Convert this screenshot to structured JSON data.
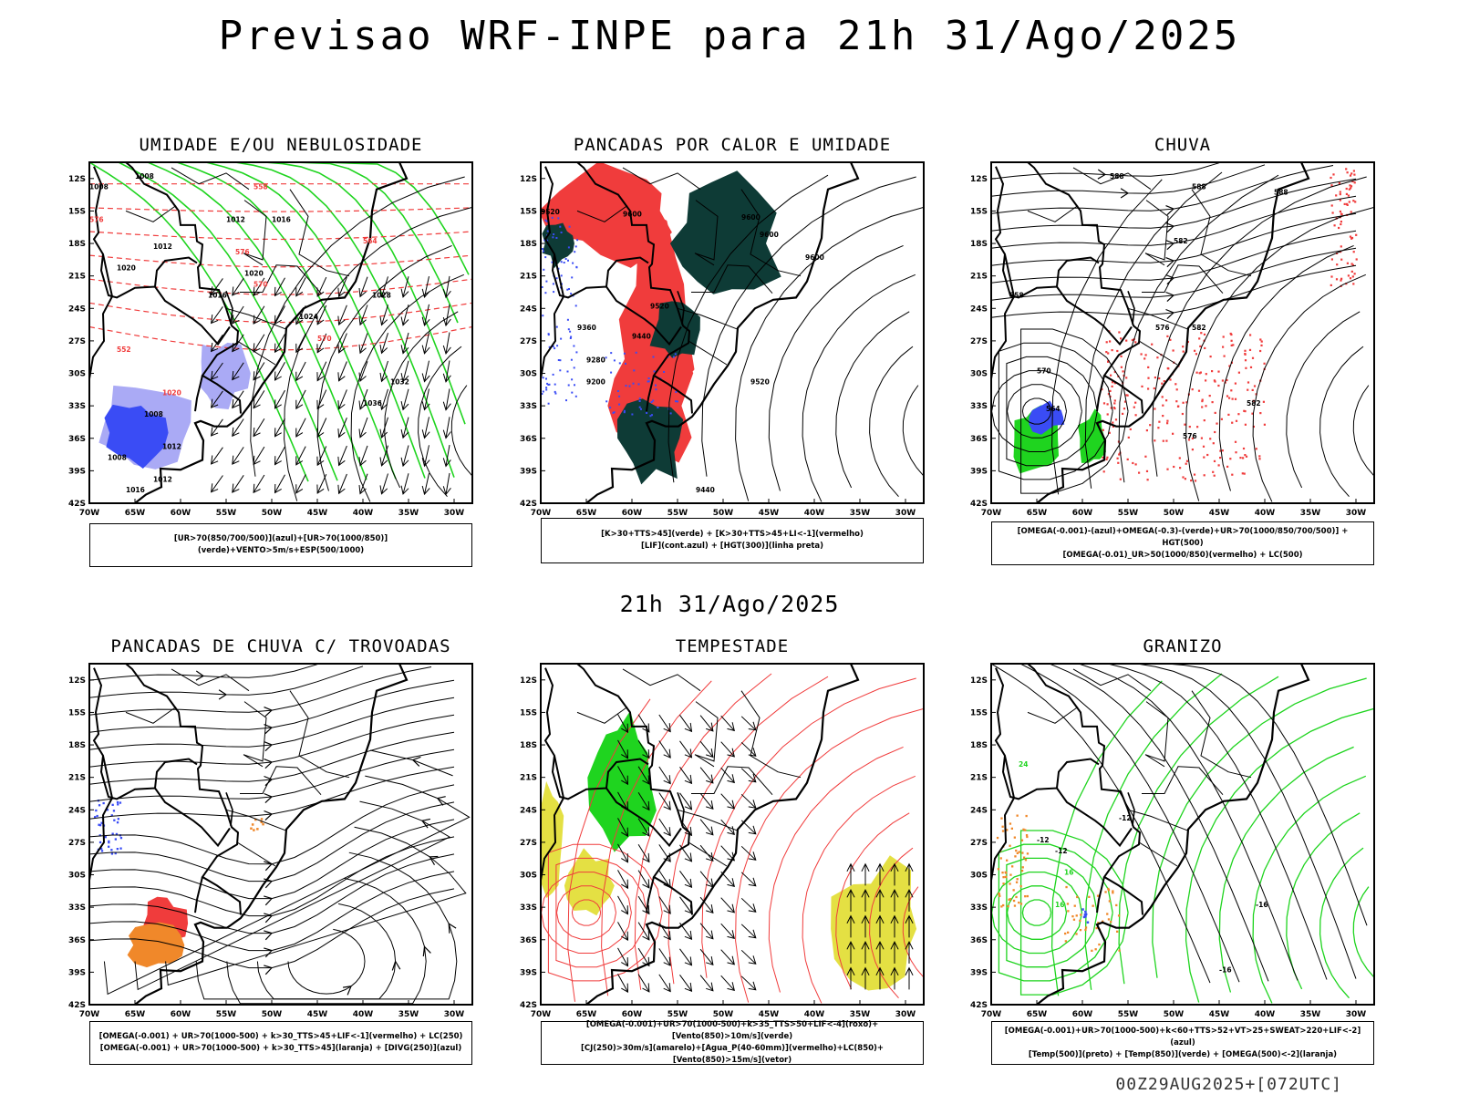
{
  "main_title": "Previsao WRF-INPE  para 21h 31/Ago/2025",
  "mid_title": "21h 31/Ago/2025",
  "footer": "00Z29AUG2025+[072UTC]",
  "lat_labels": [
    "12S",
    "15S",
    "18S",
    "21S",
    "24S",
    "27S",
    "30S",
    "33S",
    "36S",
    "39S",
    "42S"
  ],
  "lon_labels": [
    "70W",
    "65W",
    "60W",
    "55W",
    "50W",
    "45W",
    "40W",
    "35W",
    "30W"
  ],
  "colors": {
    "blue": "#3a4cf5",
    "green": "#1fd41f",
    "red": "#f03c3c",
    "darkgreen": "#0e3b36",
    "orange": "#f0882a",
    "yellow": "#e4e043",
    "lavender": "#aaaaf5"
  },
  "panels": [
    {
      "title": "UMIDADE E/OU NEBULOSIDADE",
      "legend": [
        "[UR>70(850/700/500)](azul)+[UR>70(1000/850)](verde)+VENTO>5m/s+ESP(500/1000)"
      ],
      "labels": [
        "1008",
        "1008",
        "1012",
        "1016",
        "1012",
        "1020",
        "1020",
        "1016",
        "1008",
        "1012",
        "1024",
        "1028",
        "1032",
        "1036",
        "1008",
        "1012",
        "1016",
        "1020",
        "576",
        "570",
        "564",
        "558",
        "552",
        "576",
        "570"
      ]
    },
    {
      "title": "PANCADAS POR CALOR E UMIDADE",
      "legend": [
        "[K>30+TTS>45](verde) + [K>30+TTS>45+LI<-1](vermelho)",
        "[LIF](cont.azul) + [HGT(300)](linha preta)"
      ],
      "labels": [
        "9520",
        "9600",
        "9600",
        "9600",
        "9600",
        "9520",
        "9440",
        "9360",
        "9280",
        "9200",
        "9520",
        "9440"
      ]
    },
    {
      "title": "CHUVA",
      "legend": [
        "[OMEGA(-0.001)-(azul)+OMEGA(-0.3)-(verde)+UR>70(1000/850/700/500)] + HGT(500)",
        "[OMEGA(-0.01)_UR>50(1000/850)(vermelho) + LC(500)"
      ],
      "labels": [
        "588",
        "588",
        "588",
        "582",
        "576",
        "570",
        "564",
        "558",
        "582",
        "576",
        "582"
      ]
    },
    {
      "title": "PANCADAS DE CHUVA C/ TROVOADAS",
      "legend": [
        "[OMEGA(-0.001) + UR>70(1000-500) + k>30_TTS>45+LIF<-1](vermelho) + LC(250)",
        "[OMEGA(-0.001) + UR>70(1000-500) + k>30_TTS>45](laranja) + [DIVG(250)](azul)"
      ],
      "labels": []
    },
    {
      "title": "TEMPESTADE",
      "legend": [
        "[OMEGA(-0.001)+UR>70(1000-500)+k>35_TTS>50+LIF<-4](roxo)+[Vento(850)>10m/s](verde)",
        "[CJ(250)>30m/s](amarelo)+[Agua_P(40-60mm)](vermelho)+LC(850)+[Vento(850)>15m/s](vetor)"
      ],
      "labels": []
    },
    {
      "title": "GRANIZO",
      "legend": [
        "[OMEGA(-0.001)+UR>70(1000-500)+k<60+TTS>52+VT>25+SWEAT>220+LIF<-2](azul)",
        "[Temp(500)](preto) + [Temp(850)](verde) + [OMEGA(500)<-2](laranja)"
      ],
      "labels": [
        "-12",
        "-12",
        "-16",
        "-12",
        "-16",
        "16",
        "24",
        "16"
      ]
    }
  ]
}
